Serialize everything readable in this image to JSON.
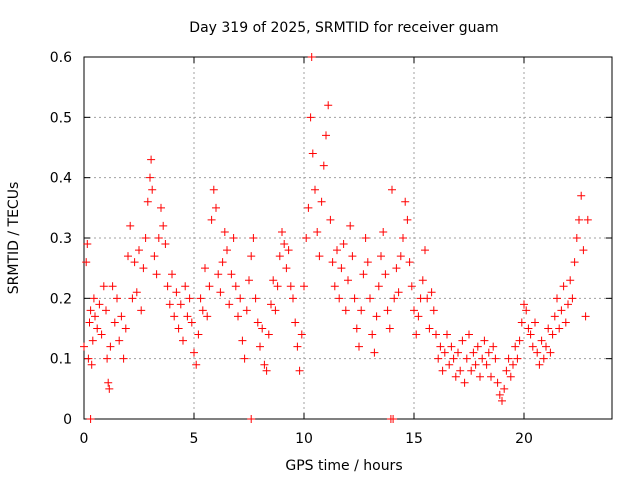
{
  "chart_data": {
    "type": "scatter",
    "title": "Day 319 of 2025, SRMTID for receiver guam",
    "xlabel": "GPS time / hours",
    "ylabel": "SRMTID / TECUs",
    "xlim": [
      0,
      24
    ],
    "ylim": [
      0,
      0.6
    ],
    "x_ticks": [
      0,
      5,
      10,
      15,
      20
    ],
    "y_ticks": [
      0,
      0.1,
      0.2,
      0.3,
      0.4,
      0.5,
      0.6
    ],
    "x_tick_labels": [
      "0",
      "5",
      "10",
      "15",
      "20"
    ],
    "y_tick_labels": [
      "0",
      "0.1",
      "0.2",
      "0.3",
      "0.4",
      "0.5",
      "0.6"
    ],
    "grid": true,
    "marker": "+",
    "color": "#ff0000",
    "series": [
      {
        "name": "SRMTID",
        "points": [
          [
            0.0,
            0.12
          ],
          [
            0.1,
            0.26
          ],
          [
            0.15,
            0.29
          ],
          [
            0.2,
            0.1
          ],
          [
            0.25,
            0.16
          ],
          [
            0.3,
            0.18
          ],
          [
            0.35,
            0.09
          ],
          [
            0.4,
            0.13
          ],
          [
            0.45,
            0.2
          ],
          [
            0.5,
            0.17
          ],
          [
            0.6,
            0.15
          ],
          [
            0.7,
            0.19
          ],
          [
            0.8,
            0.14
          ],
          [
            0.9,
            0.22
          ],
          [
            1.0,
            0.18
          ],
          [
            1.05,
            0.1
          ],
          [
            1.1,
            0.06
          ],
          [
            1.15,
            0.05
          ],
          [
            1.2,
            0.12
          ],
          [
            1.3,
            0.22
          ],
          [
            1.4,
            0.16
          ],
          [
            1.5,
            0.2
          ],
          [
            1.6,
            0.13
          ],
          [
            1.7,
            0.17
          ],
          [
            1.8,
            0.1
          ],
          [
            1.9,
            0.15
          ],
          [
            2.0,
            0.27
          ],
          [
            2.1,
            0.32
          ],
          [
            2.2,
            0.2
          ],
          [
            2.3,
            0.26
          ],
          [
            2.4,
            0.21
          ],
          [
            2.5,
            0.28
          ],
          [
            2.6,
            0.18
          ],
          [
            2.7,
            0.25
          ],
          [
            2.8,
            0.3
          ],
          [
            2.9,
            0.36
          ],
          [
            3.0,
            0.4
          ],
          [
            3.05,
            0.43
          ],
          [
            3.1,
            0.38
          ],
          [
            3.2,
            0.27
          ],
          [
            3.3,
            0.24
          ],
          [
            3.4,
            0.3
          ],
          [
            3.5,
            0.35
          ],
          [
            3.6,
            0.32
          ],
          [
            3.7,
            0.29
          ],
          [
            3.8,
            0.22
          ],
          [
            3.9,
            0.19
          ],
          [
            4.0,
            0.24
          ],
          [
            4.1,
            0.17
          ],
          [
            4.2,
            0.21
          ],
          [
            4.3,
            0.15
          ],
          [
            4.4,
            0.19
          ],
          [
            4.5,
            0.13
          ],
          [
            4.6,
            0.22
          ],
          [
            4.7,
            0.17
          ],
          [
            4.8,
            0.2
          ],
          [
            4.9,
            0.16
          ],
          [
            5.0,
            0.11
          ],
          [
            5.1,
            0.09
          ],
          [
            5.2,
            0.14
          ],
          [
            5.3,
            0.2
          ],
          [
            5.4,
            0.18
          ],
          [
            5.5,
            0.25
          ],
          [
            5.6,
            0.17
          ],
          [
            5.7,
            0.22
          ],
          [
            5.8,
            0.33
          ],
          [
            5.9,
            0.38
          ],
          [
            6.0,
            0.35
          ],
          [
            6.1,
            0.24
          ],
          [
            6.2,
            0.21
          ],
          [
            6.3,
            0.26
          ],
          [
            6.4,
            0.31
          ],
          [
            6.5,
            0.28
          ],
          [
            6.6,
            0.19
          ],
          [
            6.7,
            0.24
          ],
          [
            6.8,
            0.3
          ],
          [
            6.9,
            0.22
          ],
          [
            7.0,
            0.17
          ],
          [
            7.1,
            0.2
          ],
          [
            7.2,
            0.13
          ],
          [
            7.3,
            0.1
          ],
          [
            7.4,
            0.18
          ],
          [
            7.5,
            0.23
          ],
          [
            7.6,
            0.27
          ],
          [
            7.7,
            0.3
          ],
          [
            7.8,
            0.2
          ],
          [
            7.9,
            0.16
          ],
          [
            8.0,
            0.12
          ],
          [
            8.1,
            0.15
          ],
          [
            8.2,
            0.09
          ],
          [
            8.3,
            0.08
          ],
          [
            8.4,
            0.14
          ],
          [
            8.5,
            0.19
          ],
          [
            8.6,
            0.23
          ],
          [
            8.7,
            0.18
          ],
          [
            8.8,
            0.22
          ],
          [
            8.9,
            0.27
          ],
          [
            9.0,
            0.31
          ],
          [
            9.1,
            0.29
          ],
          [
            9.2,
            0.25
          ],
          [
            9.3,
            0.28
          ],
          [
            9.4,
            0.22
          ],
          [
            9.5,
            0.2
          ],
          [
            9.6,
            0.16
          ],
          [
            9.7,
            0.12
          ],
          [
            9.8,
            0.08
          ],
          [
            9.9,
            0.14
          ],
          [
            10.0,
            0.22
          ],
          [
            10.1,
            0.3
          ],
          [
            10.2,
            0.35
          ],
          [
            10.3,
            0.5
          ],
          [
            10.35,
            0.6
          ],
          [
            10.4,
            0.44
          ],
          [
            10.5,
            0.38
          ],
          [
            10.6,
            0.31
          ],
          [
            10.7,
            0.27
          ],
          [
            10.8,
            0.36
          ],
          [
            10.9,
            0.42
          ],
          [
            11.0,
            0.47
          ],
          [
            11.1,
            0.52
          ],
          [
            11.2,
            0.33
          ],
          [
            11.3,
            0.26
          ],
          [
            11.4,
            0.22
          ],
          [
            11.5,
            0.28
          ],
          [
            11.6,
            0.2
          ],
          [
            11.7,
            0.25
          ],
          [
            11.8,
            0.29
          ],
          [
            11.9,
            0.18
          ],
          [
            12.0,
            0.23
          ],
          [
            12.1,
            0.32
          ],
          [
            12.2,
            0.27
          ],
          [
            12.3,
            0.2
          ],
          [
            12.4,
            0.15
          ],
          [
            12.5,
            0.12
          ],
          [
            12.6,
            0.18
          ],
          [
            12.7,
            0.24
          ],
          [
            12.8,
            0.3
          ],
          [
            12.9,
            0.26
          ],
          [
            13.0,
            0.2
          ],
          [
            13.1,
            0.14
          ],
          [
            13.2,
            0.11
          ],
          [
            13.3,
            0.17
          ],
          [
            13.4,
            0.22
          ],
          [
            13.5,
            0.27
          ],
          [
            13.6,
            0.31
          ],
          [
            13.7,
            0.24
          ],
          [
            13.8,
            0.18
          ],
          [
            13.9,
            0.15
          ],
          [
            14.0,
            0.38
          ],
          [
            14.05,
            0.0
          ],
          [
            14.1,
            0.2
          ],
          [
            14.2,
            0.25
          ],
          [
            14.3,
            0.21
          ],
          [
            14.4,
            0.27
          ],
          [
            14.5,
            0.3
          ],
          [
            14.6,
            0.36
          ],
          [
            14.7,
            0.33
          ],
          [
            14.8,
            0.26
          ],
          [
            14.9,
            0.22
          ],
          [
            15.0,
            0.18
          ],
          [
            15.1,
            0.14
          ],
          [
            15.2,
            0.17
          ],
          [
            15.3,
            0.2
          ],
          [
            15.4,
            0.23
          ],
          [
            15.5,
            0.28
          ],
          [
            15.6,
            0.2
          ],
          [
            15.7,
            0.15
          ],
          [
            15.8,
            0.21
          ],
          [
            15.9,
            0.18
          ],
          [
            16.0,
            0.14
          ],
          [
            16.1,
            0.1
          ],
          [
            16.2,
            0.12
          ],
          [
            16.3,
            0.08
          ],
          [
            16.4,
            0.11
          ],
          [
            16.5,
            0.14
          ],
          [
            16.6,
            0.09
          ],
          [
            16.7,
            0.12
          ],
          [
            16.8,
            0.1
          ],
          [
            16.9,
            0.07
          ],
          [
            17.0,
            0.11
          ],
          [
            17.1,
            0.08
          ],
          [
            17.2,
            0.13
          ],
          [
            17.3,
            0.06
          ],
          [
            17.4,
            0.1
          ],
          [
            17.5,
            0.14
          ],
          [
            17.6,
            0.08
          ],
          [
            17.7,
            0.11
          ],
          [
            17.8,
            0.09
          ],
          [
            17.9,
            0.12
          ],
          [
            18.0,
            0.07
          ],
          [
            18.1,
            0.1
          ],
          [
            18.2,
            0.13
          ],
          [
            18.3,
            0.09
          ],
          [
            18.4,
            0.11
          ],
          [
            18.5,
            0.07
          ],
          [
            18.6,
            0.12
          ],
          [
            18.7,
            0.1
          ],
          [
            18.8,
            0.06
          ],
          [
            18.9,
            0.04
          ],
          [
            19.0,
            0.03
          ],
          [
            19.1,
            0.05
          ],
          [
            19.2,
            0.08
          ],
          [
            19.3,
            0.1
          ],
          [
            19.4,
            0.07
          ],
          [
            19.5,
            0.09
          ],
          [
            19.6,
            0.12
          ],
          [
            19.7,
            0.1
          ],
          [
            19.8,
            0.13
          ],
          [
            19.9,
            0.16
          ],
          [
            20.0,
            0.19
          ],
          [
            20.1,
            0.18
          ],
          [
            20.2,
            0.15
          ],
          [
            20.3,
            0.14
          ],
          [
            20.4,
            0.12
          ],
          [
            20.5,
            0.16
          ],
          [
            20.6,
            0.11
          ],
          [
            20.7,
            0.09
          ],
          [
            20.8,
            0.13
          ],
          [
            20.9,
            0.1
          ],
          [
            21.0,
            0.12
          ],
          [
            21.1,
            0.15
          ],
          [
            21.2,
            0.11
          ],
          [
            21.3,
            0.14
          ],
          [
            21.4,
            0.17
          ],
          [
            21.5,
            0.2
          ],
          [
            21.6,
            0.15
          ],
          [
            21.7,
            0.18
          ],
          [
            21.8,
            0.22
          ],
          [
            21.9,
            0.16
          ],
          [
            22.0,
            0.19
          ],
          [
            22.1,
            0.23
          ],
          [
            22.2,
            0.2
          ],
          [
            22.3,
            0.26
          ],
          [
            22.4,
            0.3
          ],
          [
            22.5,
            0.33
          ],
          [
            22.6,
            0.37
          ],
          [
            22.7,
            0.28
          ],
          [
            22.8,
            0.17
          ],
          [
            22.9,
            0.33
          ],
          [
            0.3,
            0.0
          ],
          [
            7.6,
            0.0
          ],
          [
            13.95,
            0.0
          ]
        ]
      }
    ]
  }
}
